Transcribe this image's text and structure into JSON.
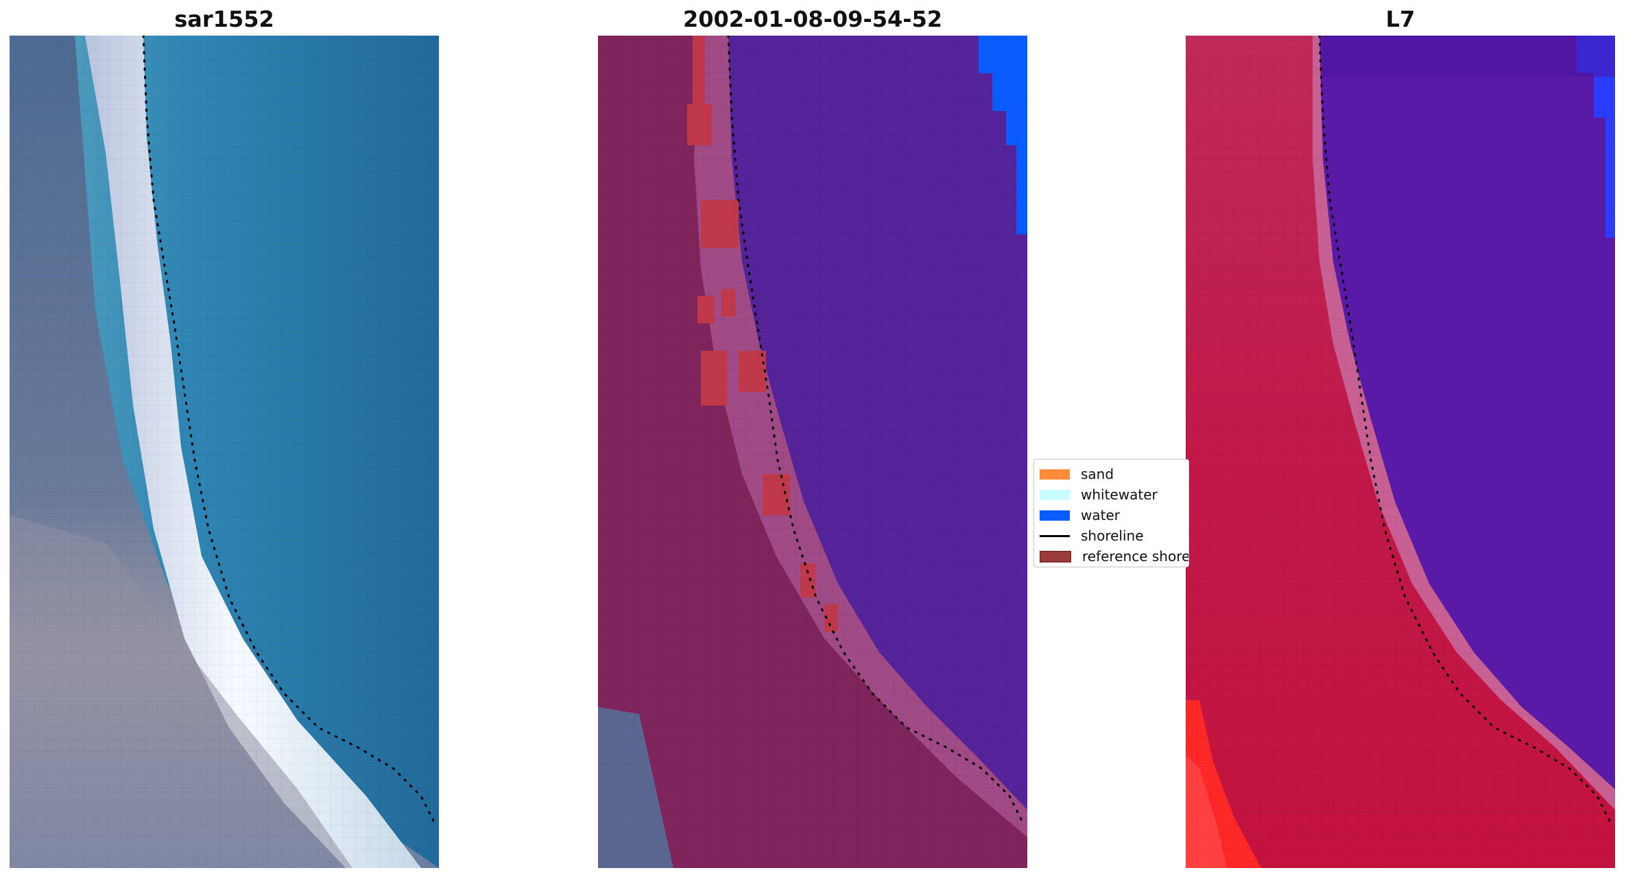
{
  "panels": [
    {
      "title": "sar1552",
      "image_name": "rgb-satellite-image"
    },
    {
      "title": "2002-01-08-09-54-52",
      "image_name": "classified-image"
    },
    {
      "title": "L7",
      "image_name": "mndwi-image"
    }
  ],
  "legend": {
    "items": [
      {
        "label": "sand",
        "color": "#ff8c3a",
        "kind": "patch"
      },
      {
        "label": "whitewater",
        "color": "#c8fcfc",
        "kind": "patch"
      },
      {
        "label": "water",
        "color": "#0a5cff",
        "kind": "patch"
      },
      {
        "label": "shoreline",
        "color": "#000000",
        "kind": "line"
      },
      {
        "label": "reference shoreline buffer",
        "color": "#9b3a3a",
        "kind": "patch"
      }
    ]
  },
  "colors": {
    "rgb_water": "#2a7fae",
    "rgb_land": "#6c7b9c",
    "rgb_beach": "#f2f6ff",
    "class_land": "#80255c",
    "class_water": "#55239a",
    "class_beach_red": "#c0394a",
    "class_water_blue": "#0a5cff",
    "mndwi_land": "#c0194a",
    "mndwi_water": "#5a1aa8",
    "mndwi_bright": "#ff2828"
  }
}
